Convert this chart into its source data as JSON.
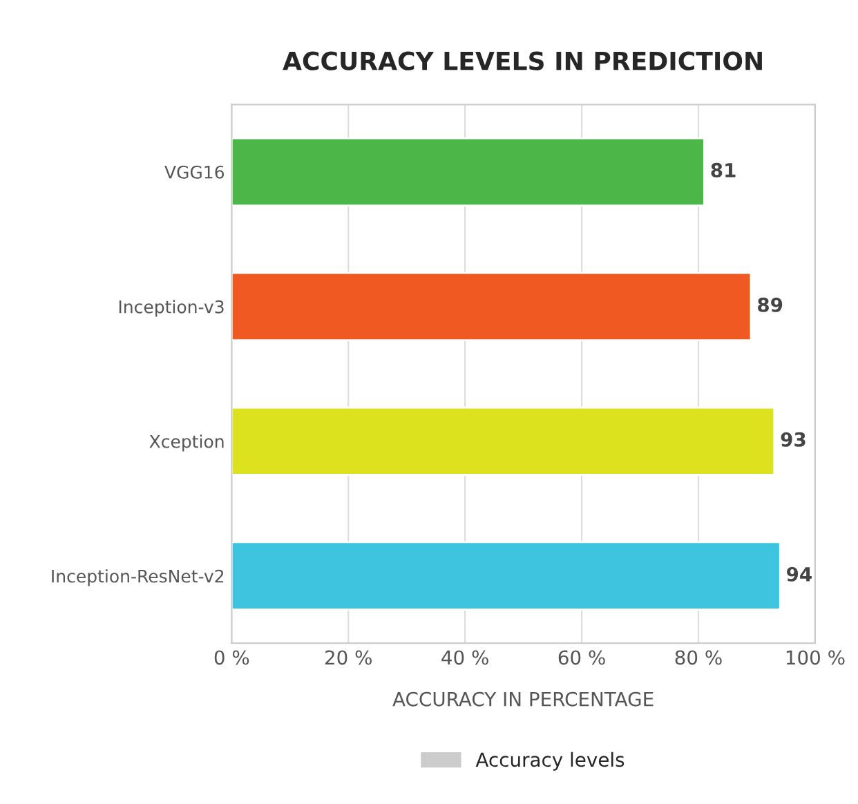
{
  "chart_data": {
    "type": "bar",
    "orientation": "horizontal",
    "title": "ACCURACY LEVELS IN PREDICTION",
    "xlabel": "ACCURACY IN PERCENTAGE",
    "categories": [
      "VGG16",
      "Inception-v3",
      "Xception",
      "Inception-ResNet-v2"
    ],
    "series": [
      {
        "name": "Accuracy levels",
        "color": "#cccccc",
        "colors": [
          "#4cb648",
          "#f05a22",
          "#dce21e",
          "#3ec4de"
        ],
        "values": [
          81,
          89,
          93,
          94
        ]
      }
    ],
    "xlim": [
      0,
      100
    ],
    "xticks": [
      {
        "value": 0,
        "label": "0 %"
      },
      {
        "value": 20,
        "label": "20 %"
      },
      {
        "value": 40,
        "label": "40 %"
      },
      {
        "value": 60,
        "label": "60 %"
      },
      {
        "value": 80,
        "label": "80 %"
      },
      {
        "value": 100,
        "label": "100 %"
      }
    ],
    "grid": "x",
    "legend": "bottom",
    "data_labels": true
  }
}
